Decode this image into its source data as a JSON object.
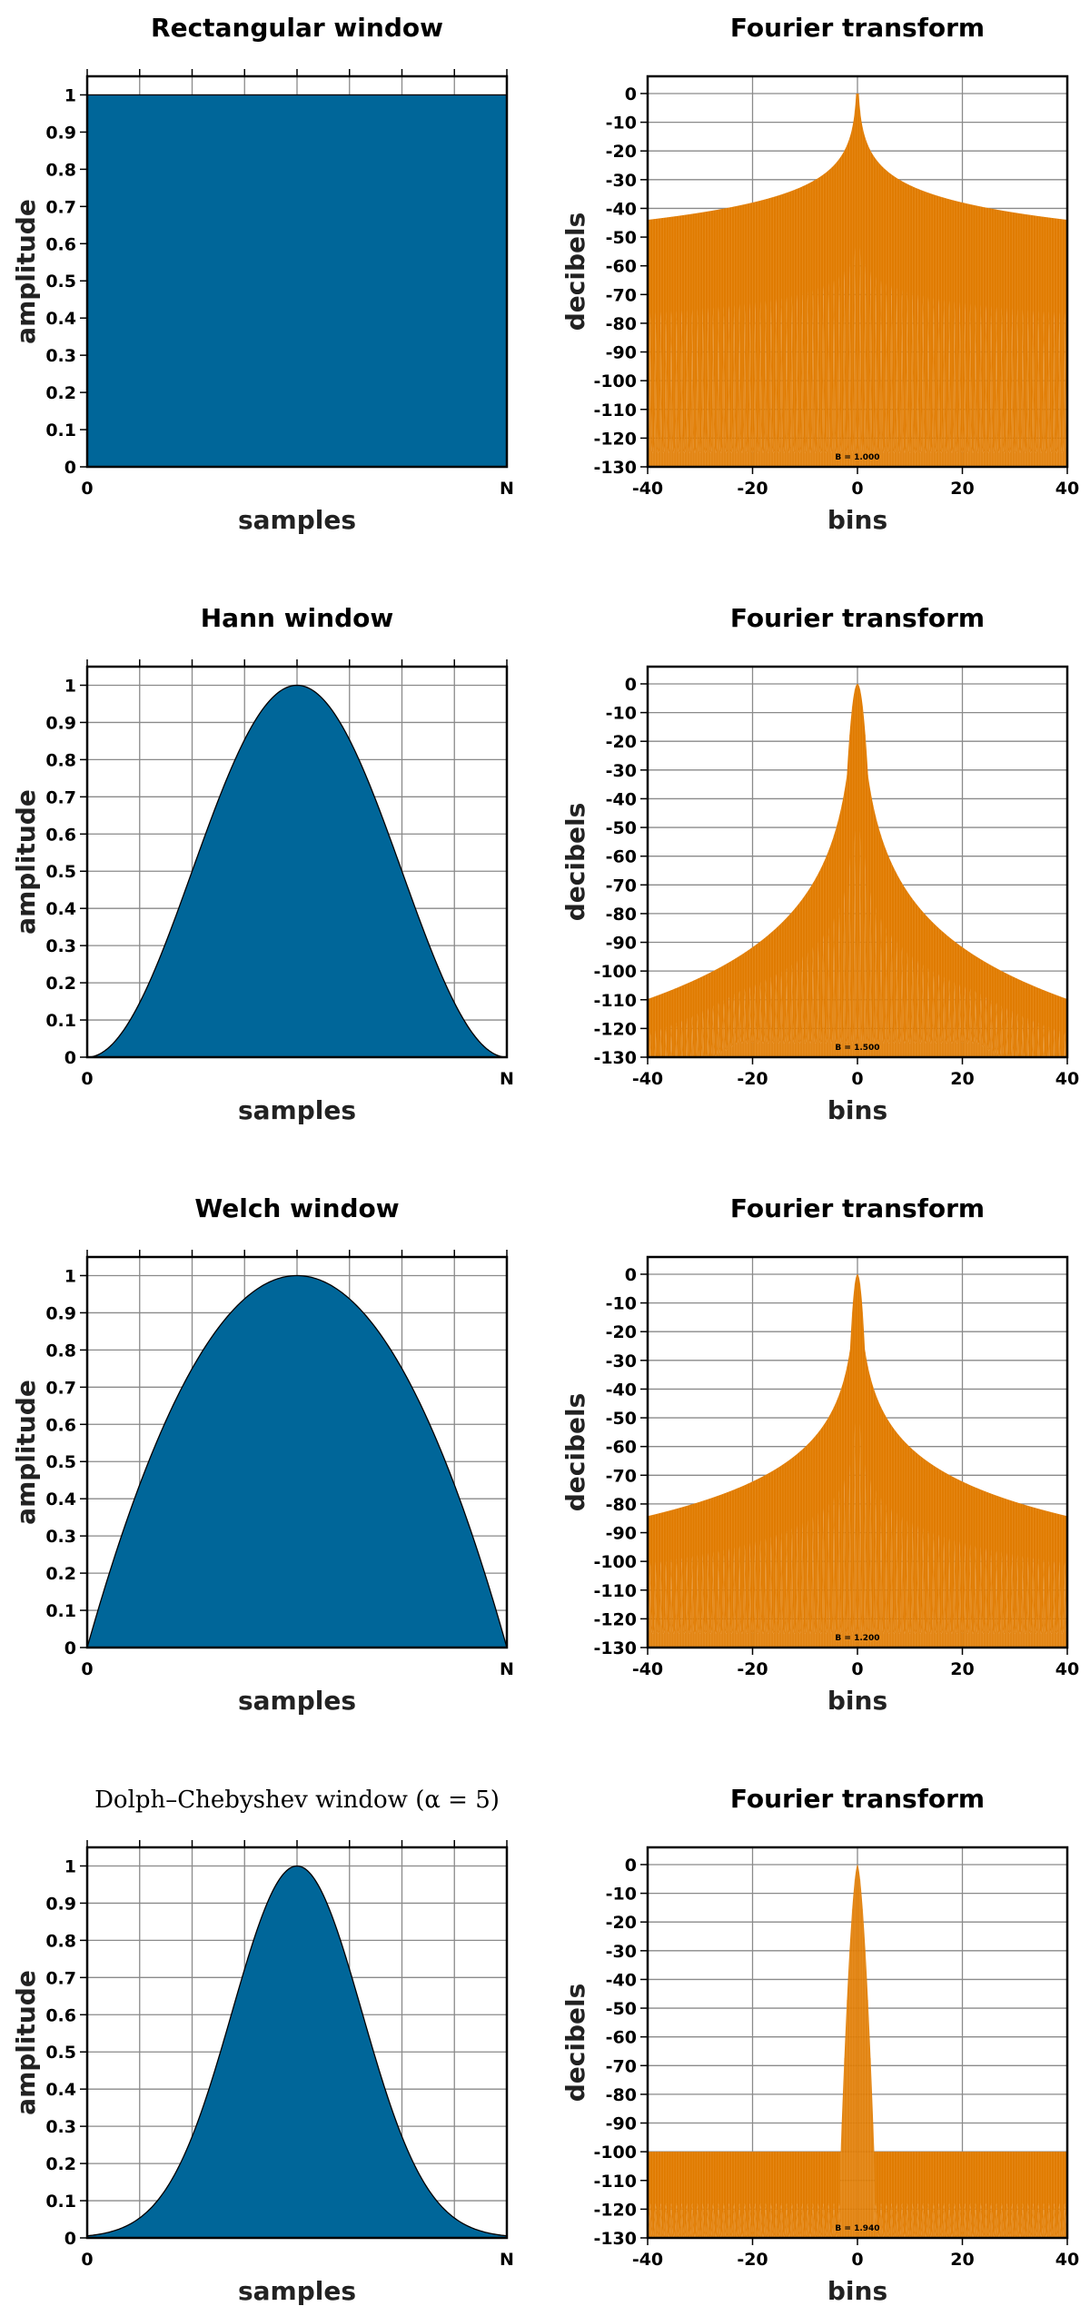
{
  "chart_data": [
    {
      "type": "area",
      "title": "Rectangular window",
      "title_style": "bold",
      "window": "rectangular",
      "xlabel": "samples",
      "ylabel": "amplitude",
      "x_tick_labels": [
        "0",
        "N"
      ],
      "xlim": [
        0,
        1
      ],
      "ylim": [
        0,
        1.05
      ],
      "y_ticks": [
        0,
        0.1,
        0.2,
        0.3,
        0.4,
        0.5,
        0.6,
        0.7,
        0.8,
        0.9,
        1
      ],
      "y_tick_labels": [
        "0",
        "0.1",
        "0.2",
        "0.3",
        "0.4",
        "0.5",
        "0.6",
        "0.7",
        "0.8",
        "0.9",
        "1"
      ],
      "x": [
        0,
        0.25,
        0.5,
        0.75,
        1
      ],
      "y": [
        1,
        1,
        1,
        1,
        1
      ],
      "grid": true,
      "color": "#006699"
    },
    {
      "type": "area",
      "title": "Fourier transform",
      "title_style": "bold",
      "window": "rectangular",
      "xlabel": "bins",
      "ylabel": "decibels",
      "xlim": [
        -40,
        40
      ],
      "ylim": [
        -130,
        6
      ],
      "x_ticks": [
        -40,
        -20,
        0,
        20,
        40
      ],
      "x_tick_labels": [
        "-40",
        "-20",
        "0",
        "20",
        "40"
      ],
      "y_ticks": [
        0,
        -10,
        -20,
        -30,
        -40,
        -50,
        -60,
        -70,
        -80,
        -90,
        -100,
        -110,
        -120,
        -130
      ],
      "y_tick_labels": [
        "0",
        "-10",
        "-20",
        "-30",
        "-40",
        "-50",
        "-60",
        "-70",
        "-80",
        "-90",
        "-100",
        "-110",
        "-120",
        "-130"
      ],
      "annotation": "B = 1.000",
      "grid": true,
      "color": "#e07b00"
    },
    {
      "type": "area",
      "title": "Hann window",
      "title_style": "bold",
      "window": "hann",
      "xlabel": "samples",
      "ylabel": "amplitude",
      "x_tick_labels": [
        "0",
        "N"
      ],
      "xlim": [
        0,
        1
      ],
      "ylim": [
        0,
        1.05
      ],
      "y_ticks": [
        0,
        0.1,
        0.2,
        0.3,
        0.4,
        0.5,
        0.6,
        0.7,
        0.8,
        0.9,
        1
      ],
      "y_tick_labels": [
        "0",
        "0.1",
        "0.2",
        "0.3",
        "0.4",
        "0.5",
        "0.6",
        "0.7",
        "0.8",
        "0.9",
        "1"
      ],
      "x": [
        0,
        0.1,
        0.2,
        0.3,
        0.4,
        0.5,
        0.6,
        0.7,
        0.8,
        0.9,
        1
      ],
      "y": [
        0,
        0.1,
        0.35,
        0.65,
        0.9,
        1,
        0.9,
        0.65,
        0.35,
        0.1,
        0
      ],
      "grid": true,
      "color": "#006699"
    },
    {
      "type": "area",
      "title": "Fourier transform",
      "title_style": "bold",
      "window": "hann",
      "xlabel": "bins",
      "ylabel": "decibels",
      "xlim": [
        -40,
        40
      ],
      "ylim": [
        -130,
        6
      ],
      "x_ticks": [
        -40,
        -20,
        0,
        20,
        40
      ],
      "x_tick_labels": [
        "-40",
        "-20",
        "0",
        "20",
        "40"
      ],
      "y_ticks": [
        0,
        -10,
        -20,
        -30,
        -40,
        -50,
        -60,
        -70,
        -80,
        -90,
        -100,
        -110,
        -120,
        -130
      ],
      "y_tick_labels": [
        "0",
        "-10",
        "-20",
        "-30",
        "-40",
        "-50",
        "-60",
        "-70",
        "-80",
        "-90",
        "-100",
        "-110",
        "-120",
        "-130"
      ],
      "annotation": "B = 1.500",
      "grid": true,
      "color": "#e07b00"
    },
    {
      "type": "area",
      "title": "Welch window",
      "title_style": "bold",
      "window": "welch",
      "xlabel": "samples",
      "ylabel": "amplitude",
      "x_tick_labels": [
        "0",
        "N"
      ],
      "xlim": [
        0,
        1
      ],
      "ylim": [
        0,
        1.05
      ],
      "y_ticks": [
        0,
        0.1,
        0.2,
        0.3,
        0.4,
        0.5,
        0.6,
        0.7,
        0.8,
        0.9,
        1
      ],
      "y_tick_labels": [
        "0",
        "0.1",
        "0.2",
        "0.3",
        "0.4",
        "0.5",
        "0.6",
        "0.7",
        "0.8",
        "0.9",
        "1"
      ],
      "x": [
        0,
        0.1,
        0.2,
        0.3,
        0.4,
        0.5,
        0.6,
        0.7,
        0.8,
        0.9,
        1
      ],
      "y": [
        0,
        0.36,
        0.64,
        0.84,
        0.96,
        1,
        0.96,
        0.84,
        0.64,
        0.36,
        0
      ],
      "grid": true,
      "color": "#006699"
    },
    {
      "type": "area",
      "title": "Fourier transform",
      "title_style": "bold",
      "window": "welch",
      "xlabel": "bins",
      "ylabel": "decibels",
      "xlim": [
        -40,
        40
      ],
      "ylim": [
        -130,
        6
      ],
      "x_ticks": [
        -40,
        -20,
        0,
        20,
        40
      ],
      "x_tick_labels": [
        "-40",
        "-20",
        "0",
        "20",
        "40"
      ],
      "y_ticks": [
        0,
        -10,
        -20,
        -30,
        -40,
        -50,
        -60,
        -70,
        -80,
        -90,
        -100,
        -110,
        -120,
        -130
      ],
      "y_tick_labels": [
        "0",
        "-10",
        "-20",
        "-30",
        "-40",
        "-50",
        "-60",
        "-70",
        "-80",
        "-90",
        "-100",
        "-110",
        "-120",
        "-130"
      ],
      "annotation": "B = 1.200",
      "grid": true,
      "color": "#e07b00"
    },
    {
      "type": "area",
      "title": "Dolph–Chebyshev window (α = 5)",
      "title_style": "serif",
      "window": "dolph-chebyshev",
      "xlabel": "samples",
      "ylabel": "amplitude",
      "x_tick_labels": [
        "0",
        "N"
      ],
      "xlim": [
        0,
        1
      ],
      "ylim": [
        0,
        1.05
      ],
      "y_ticks": [
        0,
        0.1,
        0.2,
        0.3,
        0.4,
        0.5,
        0.6,
        0.7,
        0.8,
        0.9,
        1
      ],
      "y_tick_labels": [
        "0",
        "0.1",
        "0.2",
        "0.3",
        "0.4",
        "0.5",
        "0.6",
        "0.7",
        "0.8",
        "0.9",
        "1"
      ],
      "x": [
        0,
        0.1,
        0.2,
        0.3,
        0.4,
        0.5,
        0.6,
        0.7,
        0.8,
        0.9,
        1
      ],
      "y": [
        0,
        0.02,
        0.1,
        0.33,
        0.75,
        1,
        0.75,
        0.33,
        0.1,
        0.02,
        0
      ],
      "grid": true,
      "color": "#006699"
    },
    {
      "type": "area",
      "title": "Fourier transform",
      "title_style": "bold",
      "window": "dolph-chebyshev",
      "xlabel": "bins",
      "ylabel": "decibels",
      "xlim": [
        -40,
        40
      ],
      "ylim": [
        -130,
        6
      ],
      "x_ticks": [
        -40,
        -20,
        0,
        20,
        40
      ],
      "x_tick_labels": [
        "-40",
        "-20",
        "0",
        "20",
        "40"
      ],
      "y_ticks": [
        0,
        -10,
        -20,
        -30,
        -40,
        -50,
        -60,
        -70,
        -80,
        -90,
        -100,
        -110,
        -120,
        -130
      ],
      "y_tick_labels": [
        "0",
        "-10",
        "-20",
        "-30",
        "-40",
        "-50",
        "-60",
        "-70",
        "-80",
        "-90",
        "-100",
        "-110",
        "-120",
        "-130"
      ],
      "annotation": "B = 1.940",
      "grid": true,
      "color": "#e07b00"
    }
  ]
}
